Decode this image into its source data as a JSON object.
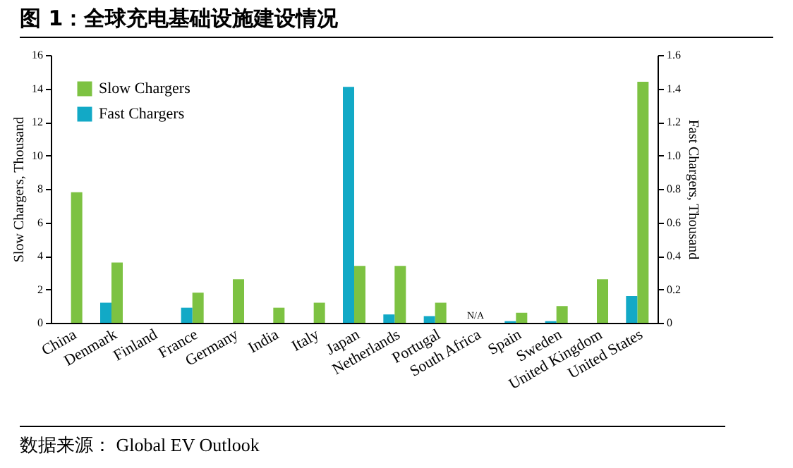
{
  "chart_data": {
    "type": "bar",
    "title": "图 1：全球充电基础设施建设情况",
    "categories": [
      "China",
      "Denmark",
      "Finland",
      "France",
      "Germany",
      "India",
      "Italy",
      "Japan",
      "Netherlands",
      "Portugal",
      "South Africa",
      "Spain",
      "Sweden",
      "United Kingdom",
      "United States"
    ],
    "series": [
      {
        "name": "Slow Chargers",
        "color": "#7dc242",
        "values": [
          7.8,
          3.6,
          0,
          1.8,
          2.6,
          0.9,
          1.2,
          3.4,
          3.4,
          1.2,
          null,
          0.6,
          1.0,
          2.6,
          14.4
        ]
      },
      {
        "name": "Fast Chargers",
        "color": "#12a9c6",
        "axis": "y2",
        "values": [
          null,
          0.12,
          null,
          0.09,
          null,
          null,
          null,
          1.41,
          0.05,
          0.04,
          null,
          0.01,
          0.01,
          null,
          0.16
        ]
      }
    ],
    "ylabel": "Slow Chargers, Thousand",
    "y2label": "Fast Chargers, Thousand",
    "ylim": [
      0,
      16
    ],
    "yticks": [
      0,
      2,
      4,
      6,
      8,
      10,
      12,
      14,
      16
    ],
    "y2lim": [
      0,
      1.6
    ],
    "y2ticks": [
      0,
      0.2,
      0.4,
      0.6,
      0.8,
      {
        "value": 1,
        "label": "1.0"
      },
      1.2,
      1.4,
      1.6
    ],
    "legend": "top left",
    "grid": false,
    "annotations": [
      "N/A",
      "数据来源： Global EV Outlook"
    ]
  }
}
